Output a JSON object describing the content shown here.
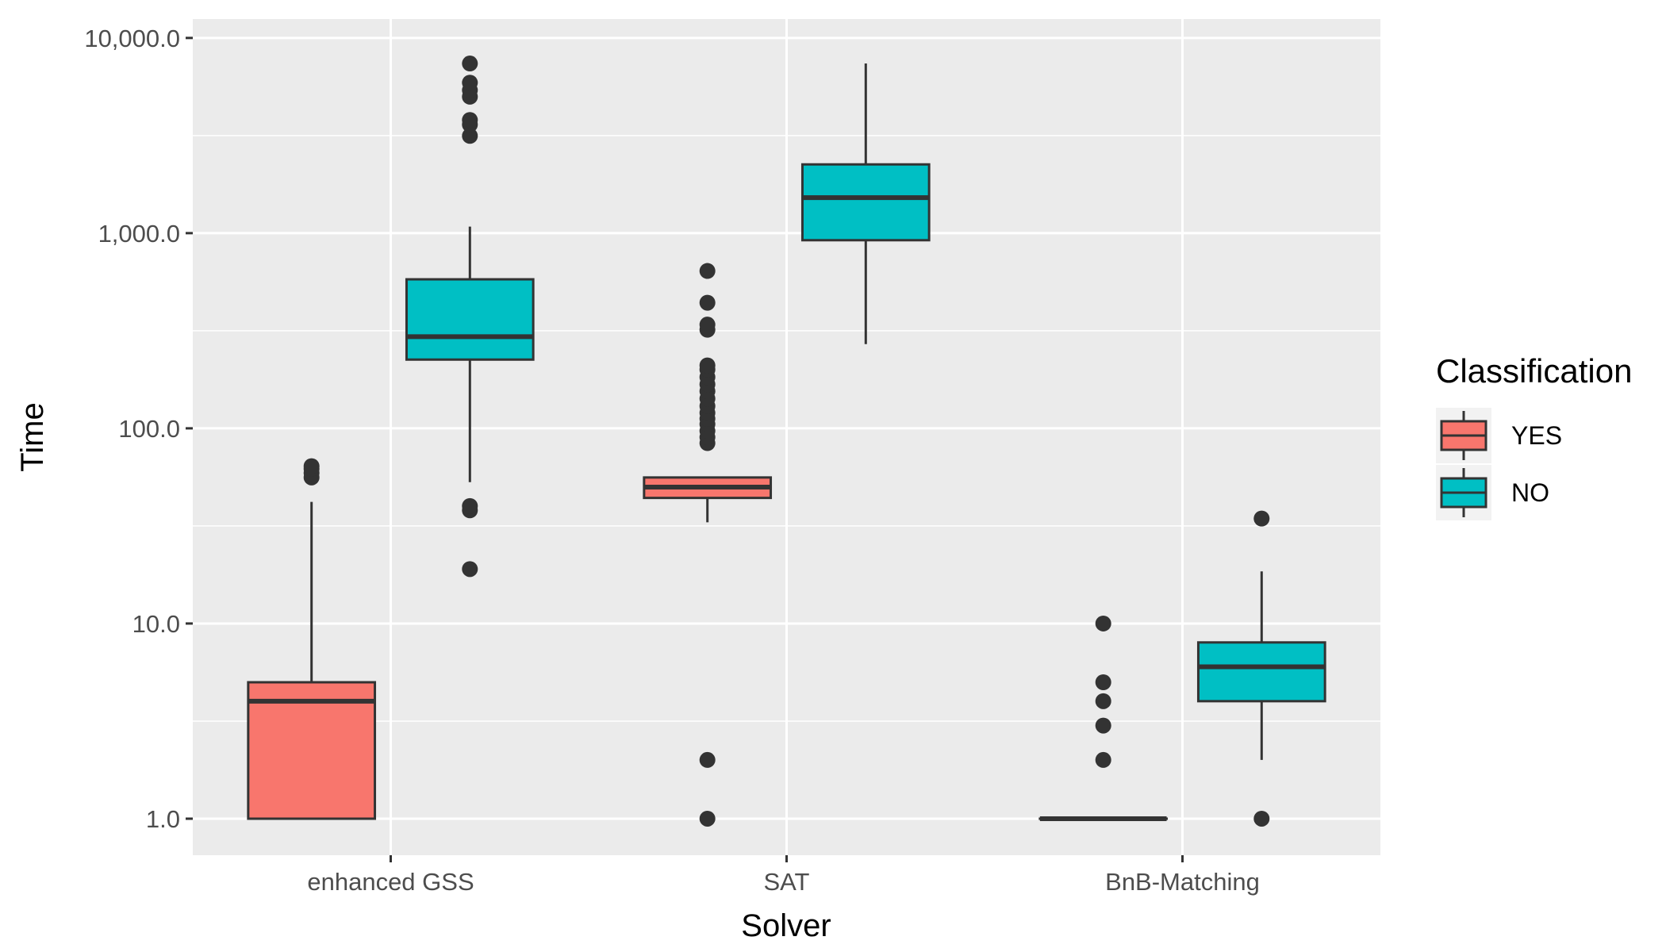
{
  "chart_data": {
    "type": "boxplot",
    "title": "",
    "xlabel": "Solver",
    "ylabel": "Time",
    "yscale": "log10",
    "ylim": [
      0.65,
      12500
    ],
    "yticks": [
      1,
      10,
      100,
      1000,
      10000
    ],
    "ytick_labels": [
      "1.0",
      "10.0",
      "100.0",
      "1,000.0",
      "10,000.0"
    ],
    "categories": [
      "enhanced GSS",
      "SAT",
      "BnB-Matching"
    ],
    "grid": true,
    "legend": {
      "title": "Classification",
      "position": "right",
      "entries": [
        {
          "label": "YES",
          "color": "#F8766D"
        },
        {
          "label": "NO",
          "color": "#00BFC4"
        }
      ]
    },
    "series": [
      {
        "name": "YES",
        "color": "#F8766D",
        "boxes": [
          {
            "category": "enhanced GSS",
            "min": 1,
            "q1": 1,
            "median": 4,
            "q3": 5,
            "max": 42,
            "outliers": [
              56,
              59,
              62,
              64
            ]
          },
          {
            "category": "SAT",
            "min": 33,
            "q1": 44,
            "median": 50,
            "q3": 56,
            "max": 56,
            "outliers": [
              1,
              2,
              84,
              90,
              97,
              105,
              112,
              120,
              130,
              142,
              155,
              168,
              183,
              200,
              210,
              320,
              340,
              440,
              640
            ]
          },
          {
            "category": "BnB-Matching",
            "min": 1,
            "q1": 1,
            "median": 1,
            "q3": 1,
            "max": 1,
            "outliers": [
              2,
              3,
              4,
              5,
              10
            ]
          }
        ]
      },
      {
        "name": "NO",
        "color": "#00BFC4",
        "boxes": [
          {
            "category": "enhanced GSS",
            "min": 53,
            "q1": 225,
            "median": 295,
            "q3": 580,
            "max": 1080,
            "outliers": [
              19,
              38,
              40,
              3150,
              3600,
              3800,
              5000,
              5400,
              5900,
              7400
            ]
          },
          {
            "category": "SAT",
            "min": 270,
            "q1": 920,
            "median": 1520,
            "q3": 2250,
            "max": 7400,
            "outliers": []
          },
          {
            "category": "BnB-Matching",
            "min": 2,
            "q1": 4,
            "median": 6,
            "q3": 8,
            "max": 18.5,
            "outliers": [
              1,
              34.5
            ]
          }
        ]
      }
    ]
  }
}
